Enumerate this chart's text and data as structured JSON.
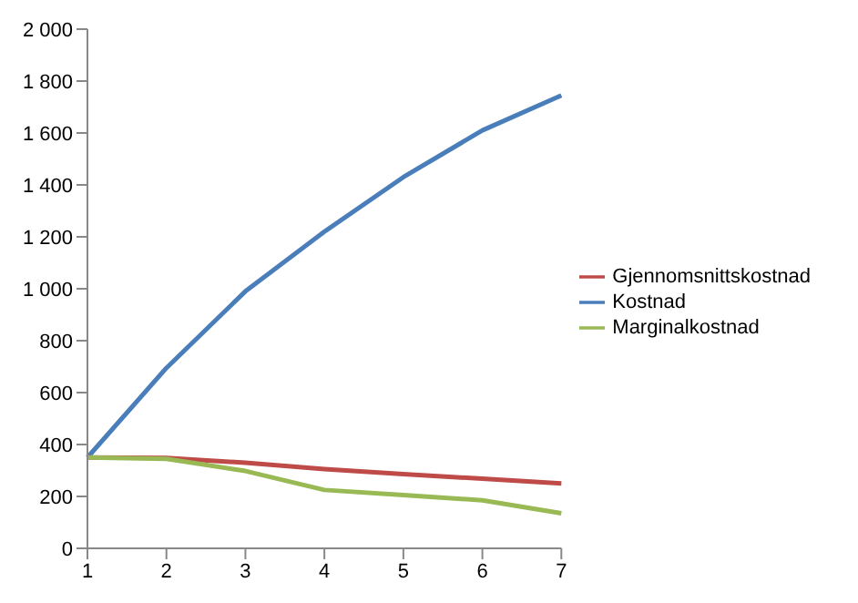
{
  "chart_data": {
    "type": "line",
    "categories": [
      "1",
      "2",
      "3",
      "4",
      "5",
      "6",
      "7"
    ],
    "series": [
      {
        "name": "Kostnad",
        "color": "#4a7ebb",
        "values": [
          350,
          695,
          990,
          1220,
          1430,
          1610,
          1745
        ]
      },
      {
        "name": "Gjennomsnittskostnad",
        "color": "#be4b48",
        "values": [
          350,
          348,
          330,
          305,
          286,
          268,
          250
        ]
      },
      {
        "name": "Marginalkostnad",
        "color": "#98b954",
        "values": [
          350,
          345,
          298,
          225,
          205,
          185,
          135
        ]
      }
    ],
    "ylim": [
      0,
      2000
    ],
    "yticks": [
      0,
      200,
      400,
      600,
      800,
      {
        "value": 1000,
        "label": "1 000"
      },
      {
        "value": 1200,
        "label": "1 200"
      },
      {
        "value": 1400,
        "label": "1 400"
      },
      {
        "value": 1600,
        "label": "1 600"
      },
      {
        "value": 1800,
        "label": "1 800"
      },
      {
        "value": 2000,
        "label": "2 000"
      }
    ],
    "grid": false,
    "legend": "right",
    "marker": "none",
    "line_style": "solid"
  }
}
